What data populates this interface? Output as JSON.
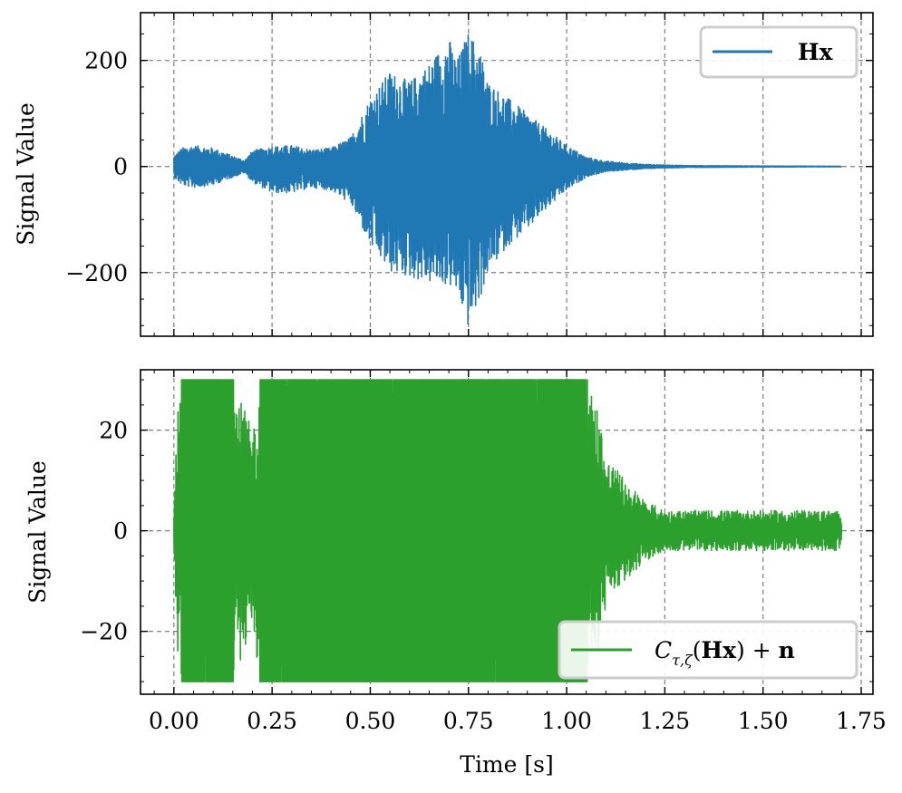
{
  "chart_data": [
    {
      "type": "line",
      "panel": "top",
      "xlabel": "",
      "ylabel": "Signal Value",
      "xlim": [
        -0.085,
        1.78
      ],
      "ylim": [
        -320,
        290
      ],
      "xticks": [
        0.0,
        0.25,
        0.5,
        0.75,
        1.0,
        1.25,
        1.5,
        1.75
      ],
      "yticks": [
        -200,
        0,
        200
      ],
      "ytick_labels": [
        "−200",
        "0",
        "200"
      ],
      "grid": true,
      "legend_position": "top-right",
      "series": [
        {
          "name": "Hx",
          "color": "#1f77b4",
          "x_range": [
            0.0,
            1.7
          ],
          "envelope_time": [
            0.0,
            0.02,
            0.05,
            0.1,
            0.15,
            0.18,
            0.2,
            0.25,
            0.3,
            0.35,
            0.4,
            0.45,
            0.5,
            0.55,
            0.6,
            0.65,
            0.7,
            0.72,
            0.75,
            0.78,
            0.8,
            0.85,
            0.9,
            0.95,
            1.0,
            1.05,
            1.1,
            1.2,
            1.3,
            1.5,
            1.7
          ],
          "envelope_max": [
            20,
            35,
            40,
            35,
            20,
            12,
            30,
            38,
            40,
            32,
            35,
            55,
            130,
            180,
            160,
            195,
            245,
            200,
            255,
            220,
            160,
            130,
            100,
            70,
            40,
            18,
            10,
            4,
            2,
            1,
            0.5
          ],
          "envelope_min": [
            -20,
            -35,
            -40,
            -35,
            -20,
            -12,
            -30,
            -50,
            -50,
            -40,
            -45,
            -70,
            -150,
            -200,
            -210,
            -220,
            -225,
            -240,
            -305,
            -250,
            -200,
            -150,
            -120,
            -80,
            -45,
            -20,
            -10,
            -4,
            -2,
            -1,
            -0.5
          ]
        }
      ]
    },
    {
      "type": "line",
      "panel": "bottom",
      "xlabel": "Time [s]",
      "ylabel": "Signal Value",
      "xlim": [
        -0.085,
        1.78
      ],
      "ylim": [
        -32.5,
        32
      ],
      "xticks": [
        0.0,
        0.25,
        0.5,
        0.75,
        1.0,
        1.25,
        1.5,
        1.75
      ],
      "xtick_labels": [
        "0.00",
        "0.25",
        "0.50",
        "0.75",
        "1.00",
        "1.25",
        "1.50",
        "1.75"
      ],
      "yticks": [
        -20,
        0,
        20
      ],
      "ytick_labels": [
        "−20",
        "0",
        "20"
      ],
      "grid": true,
      "legend_position": "bottom-right",
      "clip_level": 30,
      "noise_level": 4,
      "series": [
        {
          "name": "Cτ,ζ(Hx) + n",
          "legend_parts": [
            "C",
            "τ,ζ",
            "(",
            "Hx",
            ") + ",
            "n"
          ],
          "color": "#2ca02c",
          "x_range": [
            0.0,
            1.7
          ],
          "envelope_time": [
            0.0,
            0.01,
            0.02,
            0.15,
            0.2,
            0.22,
            0.25,
            0.3,
            0.32,
            1.0,
            1.05,
            1.08,
            1.1,
            1.15,
            1.2,
            1.25,
            1.4,
            1.7
          ],
          "envelope_max": [
            5,
            25,
            30,
            30,
            20,
            30,
            30,
            30,
            30,
            30,
            30,
            25,
            15,
            10,
            6,
            4,
            4,
            4
          ],
          "envelope_min": [
            -5,
            -25,
            -30,
            -30,
            -20,
            -30,
            -30,
            -30,
            -30,
            -30,
            -30,
            -25,
            -15,
            -10,
            -6,
            -4,
            -4,
            -4
          ]
        }
      ]
    }
  ]
}
